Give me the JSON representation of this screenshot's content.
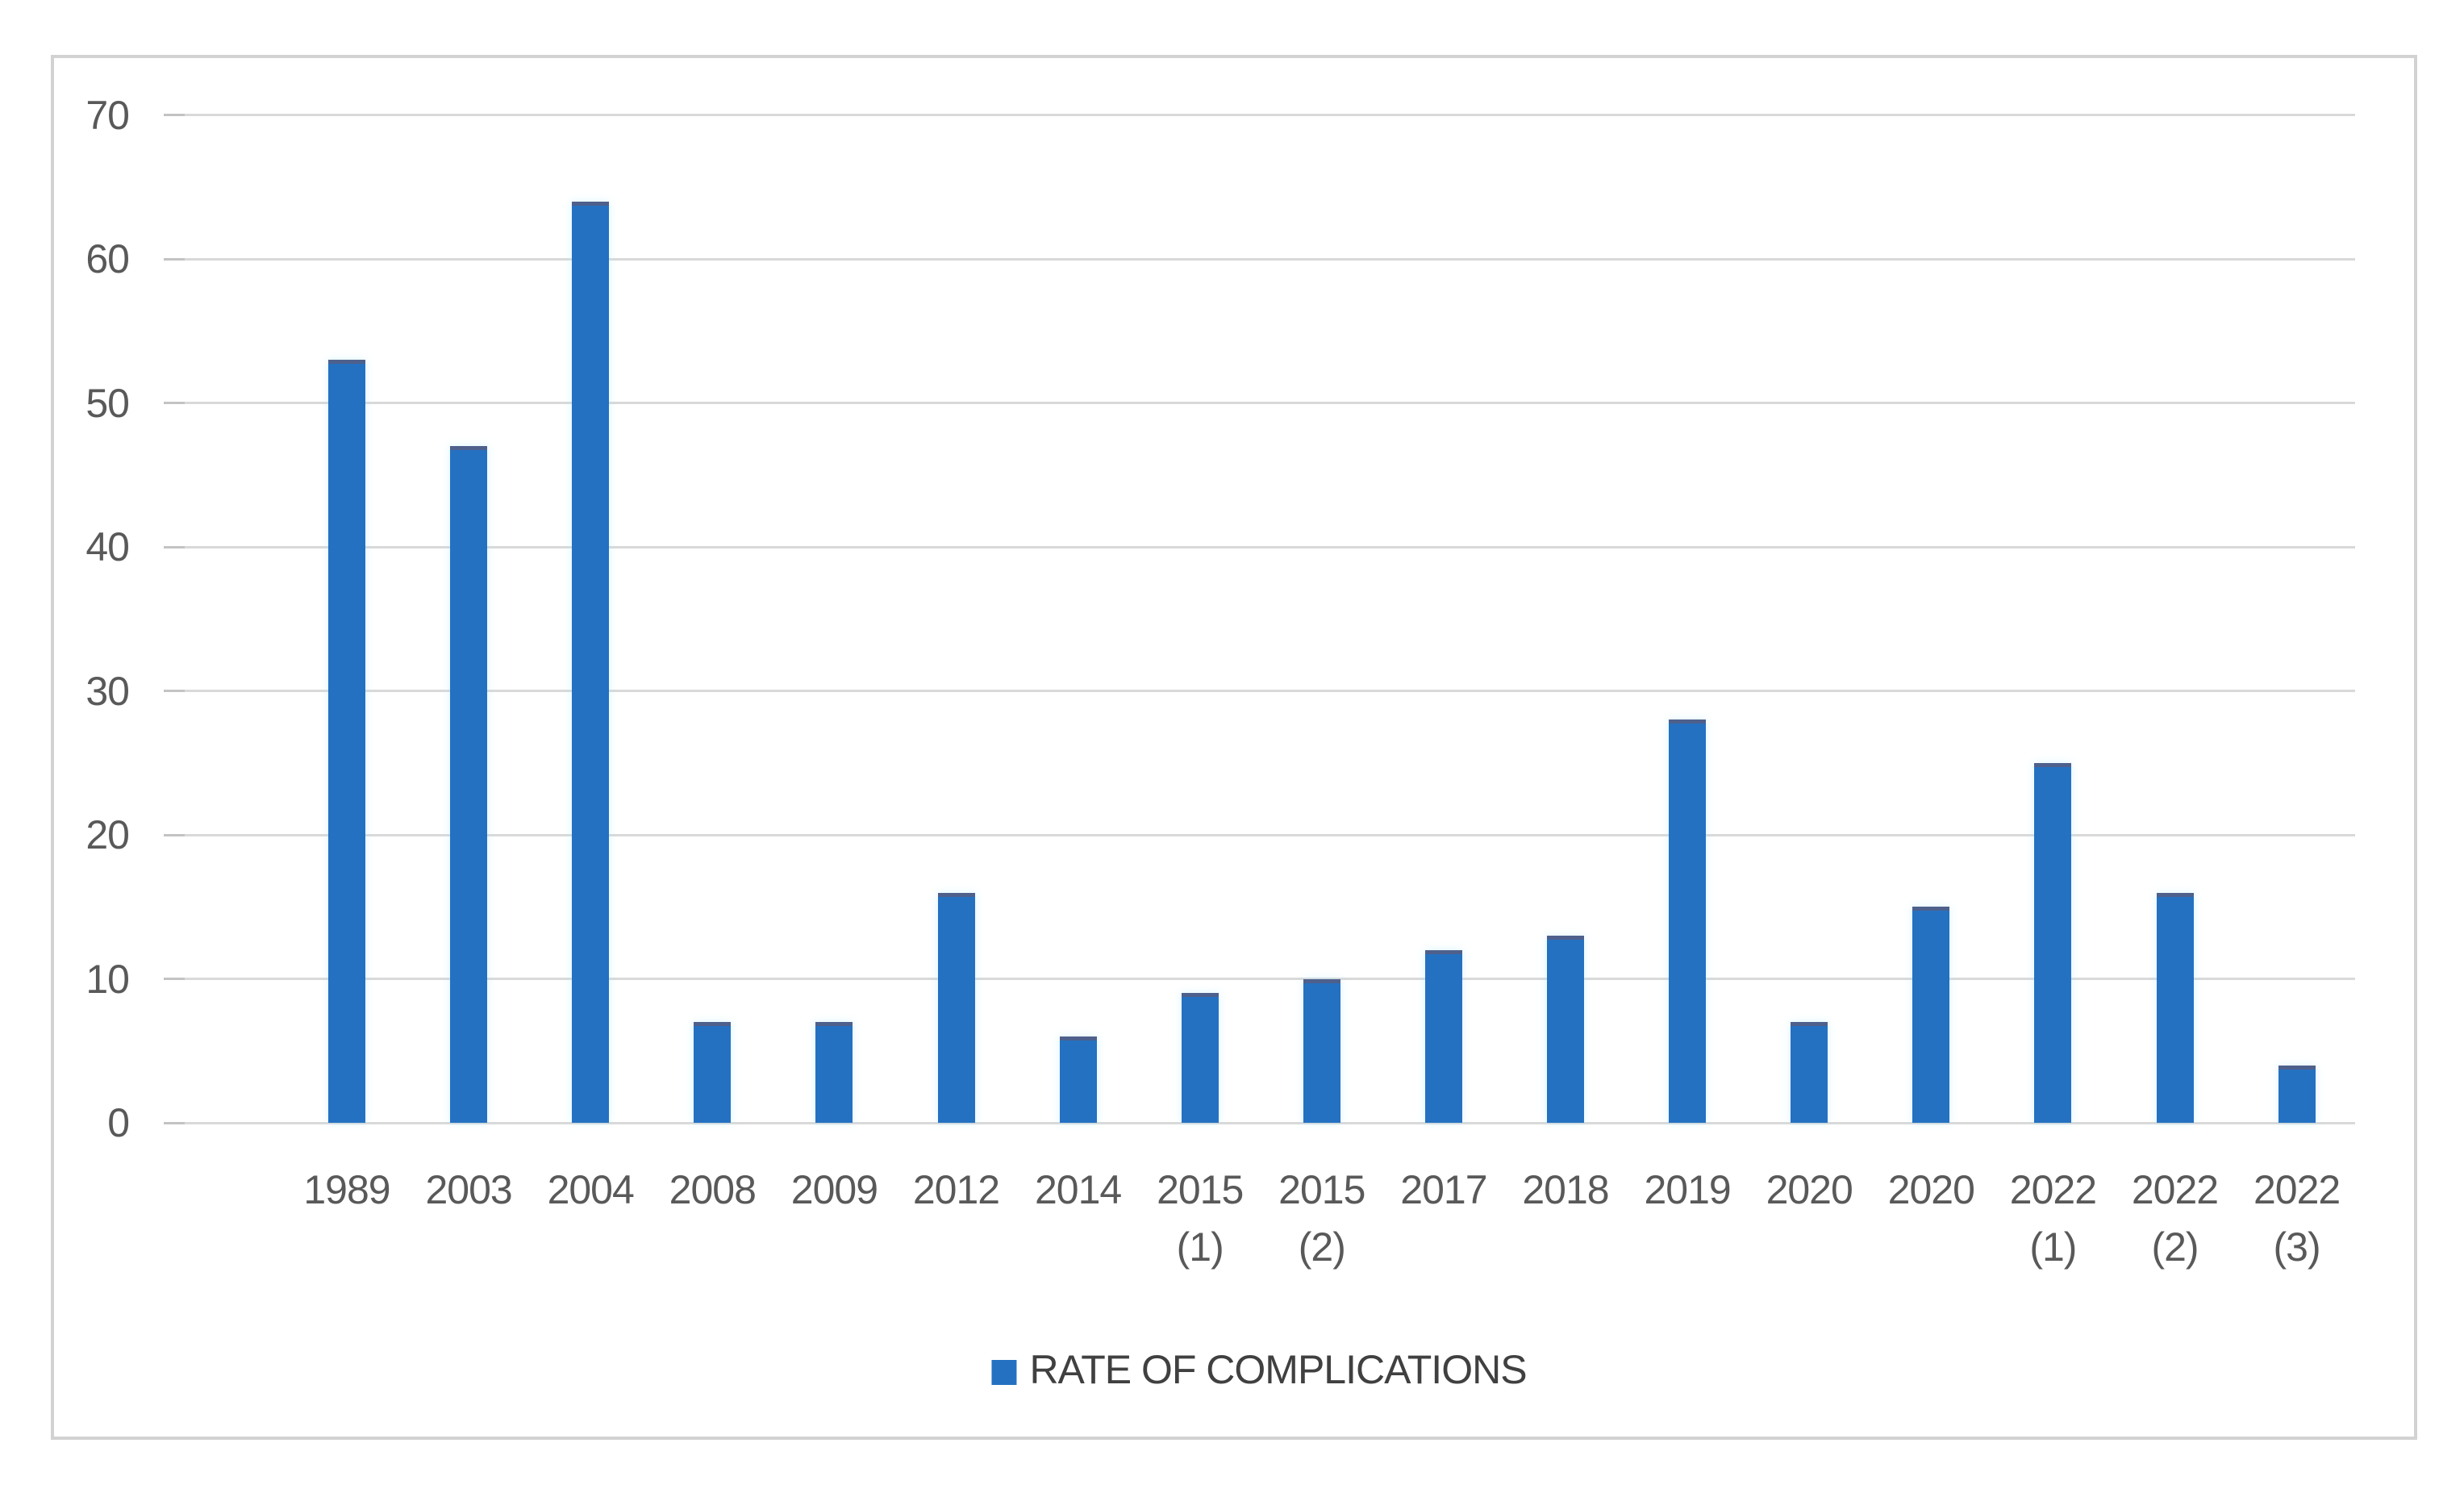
{
  "chart": {
    "legend_label": "RATE OF COMPLICATIONS",
    "colors": {
      "bar": "#2471c2",
      "bar_top_edge": "#4e608c",
      "grid": "#d9d9d9",
      "tick": "#c3c3c3",
      "axis_text": "#595959",
      "legend_text": "#404040",
      "frame_border": "#d2d2d2",
      "background": "#ffffff"
    }
  },
  "chart_data": {
    "type": "bar",
    "title": "",
    "xlabel": "",
    "ylabel": "",
    "categories": [
      "1989",
      "2003",
      "2004",
      "2008",
      "2009",
      "2012",
      "2014",
      "2015 (1)",
      "2015 (2)",
      "2017",
      "2018",
      "2019",
      "2020",
      "2020",
      "2022 (1)",
      "2022 (2)",
      "2022 (3)"
    ],
    "category_label_lines": [
      [
        "1989"
      ],
      [
        "2003"
      ],
      [
        "2004"
      ],
      [
        "2008"
      ],
      [
        "2009"
      ],
      [
        "2012"
      ],
      [
        "2014"
      ],
      [
        "2015",
        "(1)"
      ],
      [
        "2015",
        "(2)"
      ],
      [
        "2017"
      ],
      [
        "2018"
      ],
      [
        "2019"
      ],
      [
        "2020"
      ],
      [
        "2020"
      ],
      [
        "2022",
        "(1)"
      ],
      [
        "2022",
        "(2)"
      ],
      [
        "2022",
        "(3)"
      ]
    ],
    "series": [
      {
        "name": "RATE OF COMPLICATIONS",
        "values": [
          53,
          47,
          64,
          7,
          7,
          16,
          6,
          9,
          10,
          12,
          13,
          28,
          7,
          15,
          25,
          16,
          4
        ]
      }
    ],
    "ylim": [
      0,
      70
    ],
    "yticks": [
      0,
      10,
      20,
      30,
      40,
      50,
      60,
      70
    ],
    "grid": "horizontal",
    "legend_position": "bottom-center"
  }
}
